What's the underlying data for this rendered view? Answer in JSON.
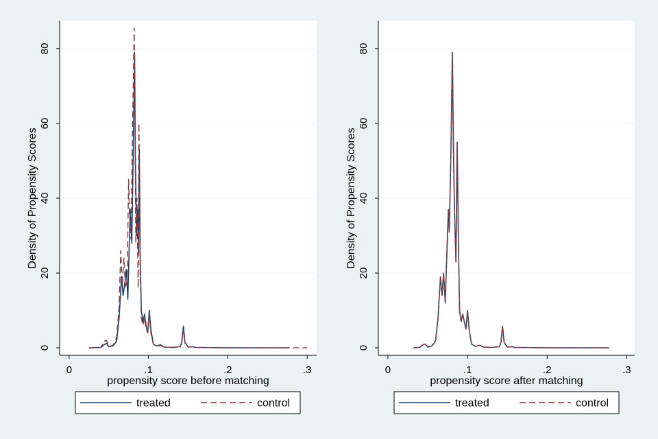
{
  "colors": {
    "treated": "#1a476f",
    "control": "#90353b",
    "background": "#eaf2f3",
    "plot_bg": "#ffffff",
    "grid": "#eaf2f3"
  },
  "chart_data": [
    {
      "type": "line",
      "xlabel": "propensity score before matching",
      "ylabel": "Density of Propensity Scores",
      "x_ticks": [
        0,
        0.1,
        0.2,
        0.3
      ],
      "x_tick_labels": [
        "0",
        ".1",
        ".2",
        ".3"
      ],
      "y_ticks": [
        0,
        20,
        40,
        60,
        80
      ],
      "y_tick_labels": [
        "0",
        "20",
        "40",
        "60",
        "80"
      ],
      "xlim": [
        -0.012,
        0.312
      ],
      "ylim": [
        -2,
        87.5
      ],
      "legend_position": "bottom",
      "series": [
        {
          "name": "treated",
          "style": "solid",
          "points": [
            [
              0.025,
              0
            ],
            [
              0.04,
              0.1
            ],
            [
              0.044,
              0.8
            ],
            [
              0.047,
              1.2
            ],
            [
              0.05,
              0.3
            ],
            [
              0.055,
              0.5
            ],
            [
              0.058,
              1.2
            ],
            [
              0.06,
              2
            ],
            [
              0.063,
              8
            ],
            [
              0.066,
              19
            ],
            [
              0.068,
              14
            ],
            [
              0.07,
              17
            ],
            [
              0.072,
              21
            ],
            [
              0.074,
              13
            ],
            [
              0.076,
              30
            ],
            [
              0.077,
              37
            ],
            [
              0.079,
              28
            ],
            [
              0.081,
              55
            ],
            [
              0.0825,
              79
            ],
            [
              0.0835,
              50
            ],
            [
              0.085,
              30
            ],
            [
              0.0865,
              37
            ],
            [
              0.0875,
              25
            ],
            [
              0.0885,
              53
            ],
            [
              0.0895,
              25
            ],
            [
              0.091,
              10
            ],
            [
              0.093,
              7
            ],
            [
              0.095,
              9
            ],
            [
              0.097,
              6
            ],
            [
              0.099,
              4
            ],
            [
              0.101,
              10
            ],
            [
              0.103,
              5
            ],
            [
              0.106,
              1
            ],
            [
              0.11,
              0.5
            ],
            [
              0.115,
              0.8
            ],
            [
              0.12,
              0.2
            ],
            [
              0.13,
              0.1
            ],
            [
              0.14,
              0.3
            ],
            [
              0.142,
              1.5
            ],
            [
              0.144,
              5.8
            ],
            [
              0.146,
              1.5
            ],
            [
              0.15,
              0.2
            ],
            [
              0.155,
              0.3
            ],
            [
              0.16,
              0.1
            ],
            [
              0.2,
              0
            ],
            [
              0.278,
              0
            ]
          ]
        },
        {
          "name": "control",
          "style": "dashed",
          "points": [
            [
              0.025,
              0
            ],
            [
              0.04,
              0.1
            ],
            [
              0.044,
              1.8
            ],
            [
              0.047,
              2
            ],
            [
              0.05,
              0.3
            ],
            [
              0.055,
              0.7
            ],
            [
              0.058,
              1.5
            ],
            [
              0.06,
              3
            ],
            [
              0.063,
              11
            ],
            [
              0.065,
              26
            ],
            [
              0.067,
              17
            ],
            [
              0.069,
              24
            ],
            [
              0.071,
              16
            ],
            [
              0.073,
              18
            ],
            [
              0.075,
              45
            ],
            [
              0.076,
              36
            ],
            [
              0.078,
              29
            ],
            [
              0.08,
              60
            ],
            [
              0.082,
              85.5
            ],
            [
              0.083,
              60
            ],
            [
              0.084,
              28
            ],
            [
              0.0855,
              40
            ],
            [
              0.087,
              16
            ],
            [
              0.088,
              60
            ],
            [
              0.0895,
              20
            ],
            [
              0.091,
              8
            ],
            [
              0.093,
              6
            ],
            [
              0.095,
              8
            ],
            [
              0.097,
              5
            ],
            [
              0.099,
              4
            ],
            [
              0.101,
              9
            ],
            [
              0.103,
              4
            ],
            [
              0.106,
              1
            ],
            [
              0.11,
              0.4
            ],
            [
              0.115,
              0.6
            ],
            [
              0.12,
              0.2
            ],
            [
              0.13,
              0.1
            ],
            [
              0.14,
              0.3
            ],
            [
              0.142,
              1.2
            ],
            [
              0.144,
              4.8
            ],
            [
              0.146,
              1.2
            ],
            [
              0.15,
              0.2
            ],
            [
              0.155,
              0.3
            ],
            [
              0.16,
              0.1
            ],
            [
              0.2,
              0
            ],
            [
              0.3,
              0
            ]
          ]
        }
      ]
    },
    {
      "type": "line",
      "xlabel": "propensity score after matching",
      "ylabel": "Density of Propensity Scores",
      "x_ticks": [
        0,
        0.1,
        0.2,
        0.3
      ],
      "x_tick_labels": [
        "0",
        ".1",
        ".2",
        ".3"
      ],
      "y_ticks": [
        0,
        20,
        40,
        60,
        80
      ],
      "y_tick_labels": [
        "0",
        "20",
        "40",
        "60",
        "80"
      ],
      "xlim": [
        -0.012,
        0.31
      ],
      "ylim": [
        -2,
        87.5
      ],
      "legend_position": "bottom",
      "series": [
        {
          "name": "treated",
          "style": "solid",
          "points": [
            [
              0.032,
              0
            ],
            [
              0.04,
              0.1
            ],
            [
              0.044,
              0.8
            ],
            [
              0.047,
              1
            ],
            [
              0.05,
              0.2
            ],
            [
              0.055,
              0.5
            ],
            [
              0.058,
              1.2
            ],
            [
              0.06,
              2
            ],
            [
              0.063,
              8
            ],
            [
              0.066,
              19
            ],
            [
              0.068,
              14
            ],
            [
              0.07,
              20
            ],
            [
              0.072,
              12
            ],
            [
              0.074,
              25
            ],
            [
              0.076,
              37
            ],
            [
              0.077,
              31
            ],
            [
              0.079,
              50
            ],
            [
              0.081,
              79
            ],
            [
              0.0825,
              50
            ],
            [
              0.084,
              34
            ],
            [
              0.0855,
              23
            ],
            [
              0.087,
              55
            ],
            [
              0.0885,
              30
            ],
            [
              0.09,
              10
            ],
            [
              0.092,
              7
            ],
            [
              0.094,
              9
            ],
            [
              0.096,
              7
            ],
            [
              0.098,
              5
            ],
            [
              0.1,
              10
            ],
            [
              0.102,
              5
            ],
            [
              0.105,
              1
            ],
            [
              0.11,
              0.4
            ],
            [
              0.115,
              0.7
            ],
            [
              0.12,
              0.2
            ],
            [
              0.13,
              0.1
            ],
            [
              0.14,
              0.3
            ],
            [
              0.142,
              1.5
            ],
            [
              0.144,
              5.8
            ],
            [
              0.146,
              1.5
            ],
            [
              0.15,
              0.2
            ],
            [
              0.155,
              0.3
            ],
            [
              0.16,
              0.1
            ],
            [
              0.2,
              0
            ],
            [
              0.278,
              0
            ]
          ]
        },
        {
          "name": "control",
          "style": "dashed",
          "points": [
            [
              0.032,
              0
            ],
            [
              0.04,
              0.1
            ],
            [
              0.044,
              0.8
            ],
            [
              0.047,
              1
            ],
            [
              0.05,
              0.2
            ],
            [
              0.055,
              0.5
            ],
            [
              0.058,
              1.2
            ],
            [
              0.06,
              2
            ],
            [
              0.063,
              8
            ],
            [
              0.066,
              19
            ],
            [
              0.068,
              14
            ],
            [
              0.07,
              20
            ],
            [
              0.072,
              12
            ],
            [
              0.074,
              25
            ],
            [
              0.076,
              37
            ],
            [
              0.077,
              31
            ],
            [
              0.079,
              50
            ],
            [
              0.081,
              79
            ],
            [
              0.0825,
              50
            ],
            [
              0.084,
              34
            ],
            [
              0.0855,
              23
            ],
            [
              0.087,
              55
            ],
            [
              0.0885,
              30
            ],
            [
              0.09,
              10
            ],
            [
              0.092,
              7
            ],
            [
              0.094,
              9
            ],
            [
              0.096,
              7
            ],
            [
              0.098,
              5
            ],
            [
              0.1,
              10
            ],
            [
              0.102,
              5
            ],
            [
              0.105,
              1
            ],
            [
              0.11,
              0.4
            ],
            [
              0.115,
              0.7
            ],
            [
              0.12,
              0.2
            ],
            [
              0.13,
              0.1
            ],
            [
              0.14,
              0.3
            ],
            [
              0.142,
              1.5
            ],
            [
              0.144,
              5.8
            ],
            [
              0.146,
              1.5
            ],
            [
              0.15,
              0.2
            ],
            [
              0.155,
              0.3
            ],
            [
              0.16,
              0.1
            ],
            [
              0.2,
              0
            ],
            [
              0.278,
              0
            ]
          ]
        }
      ]
    }
  ]
}
